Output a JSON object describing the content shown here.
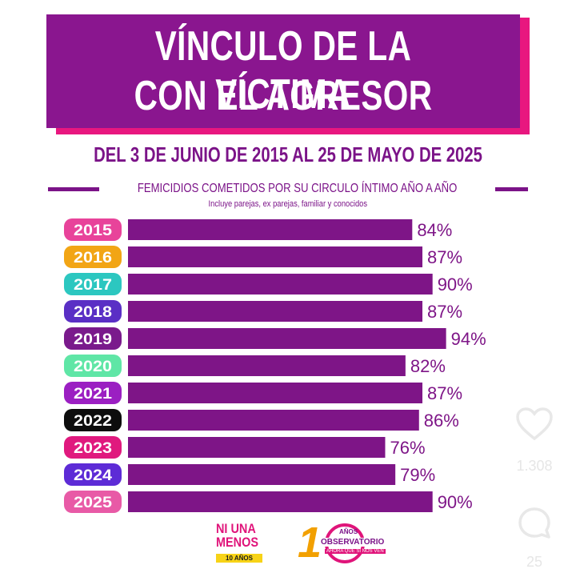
{
  "header": {
    "title_line1": "VÍNCULO DE LA VÍCTIMA",
    "title_line2": "CON EL AGRESOR",
    "subtitle": "DEL 3 DE JUNIO DE 2015 AL 25 DE MAYO DE 2025",
    "section_label": "FEMICIDIOS COMETIDOS POR SU CIRCULO ÍNTIMO AÑO A AÑO",
    "note": "Incluye parejas, ex parejas, familiar y conocidos"
  },
  "chart_data": {
    "type": "bar",
    "orientation": "horizontal",
    "categories": [
      "2015",
      "2016",
      "2017",
      "2018",
      "2019",
      "2020",
      "2021",
      "2022",
      "2023",
      "2024",
      "2025"
    ],
    "values": [
      84,
      87,
      90,
      87,
      94,
      82,
      87,
      86,
      76,
      79,
      90
    ],
    "value_labels": [
      "84%",
      "87%",
      "90%",
      "87%",
      "94%",
      "82%",
      "87%",
      "86%",
      "76%",
      "79%",
      "90%"
    ],
    "category_colors": [
      "#e8439a",
      "#f2a515",
      "#2cc7c0",
      "#5a2fc5",
      "#7a1a8c",
      "#5fe6a6",
      "#9b1fc2",
      "#0d0d0d",
      "#e0197e",
      "#5d2bd6",
      "#e85aa6"
    ],
    "bar_color": "#7e1587",
    "label_color": "#7e1587",
    "xlim": [
      0,
      100
    ],
    "grid": false
  },
  "logos": {
    "ni_una_line1": "NI UNA",
    "ni_una_line2": "MENOS",
    "ni_una_years": "10 AÑOS",
    "obs_number": "10",
    "obs_anos": "AÑOS",
    "obs_word": "OBSERVATORIO",
    "obs_tag": "AHORA QUE SI NOS VEN"
  },
  "side_actions": {
    "like_count": "1.308",
    "comment_count": "25",
    "like_icon": "heart-icon",
    "comment_icon": "speech-bubble-icon"
  }
}
